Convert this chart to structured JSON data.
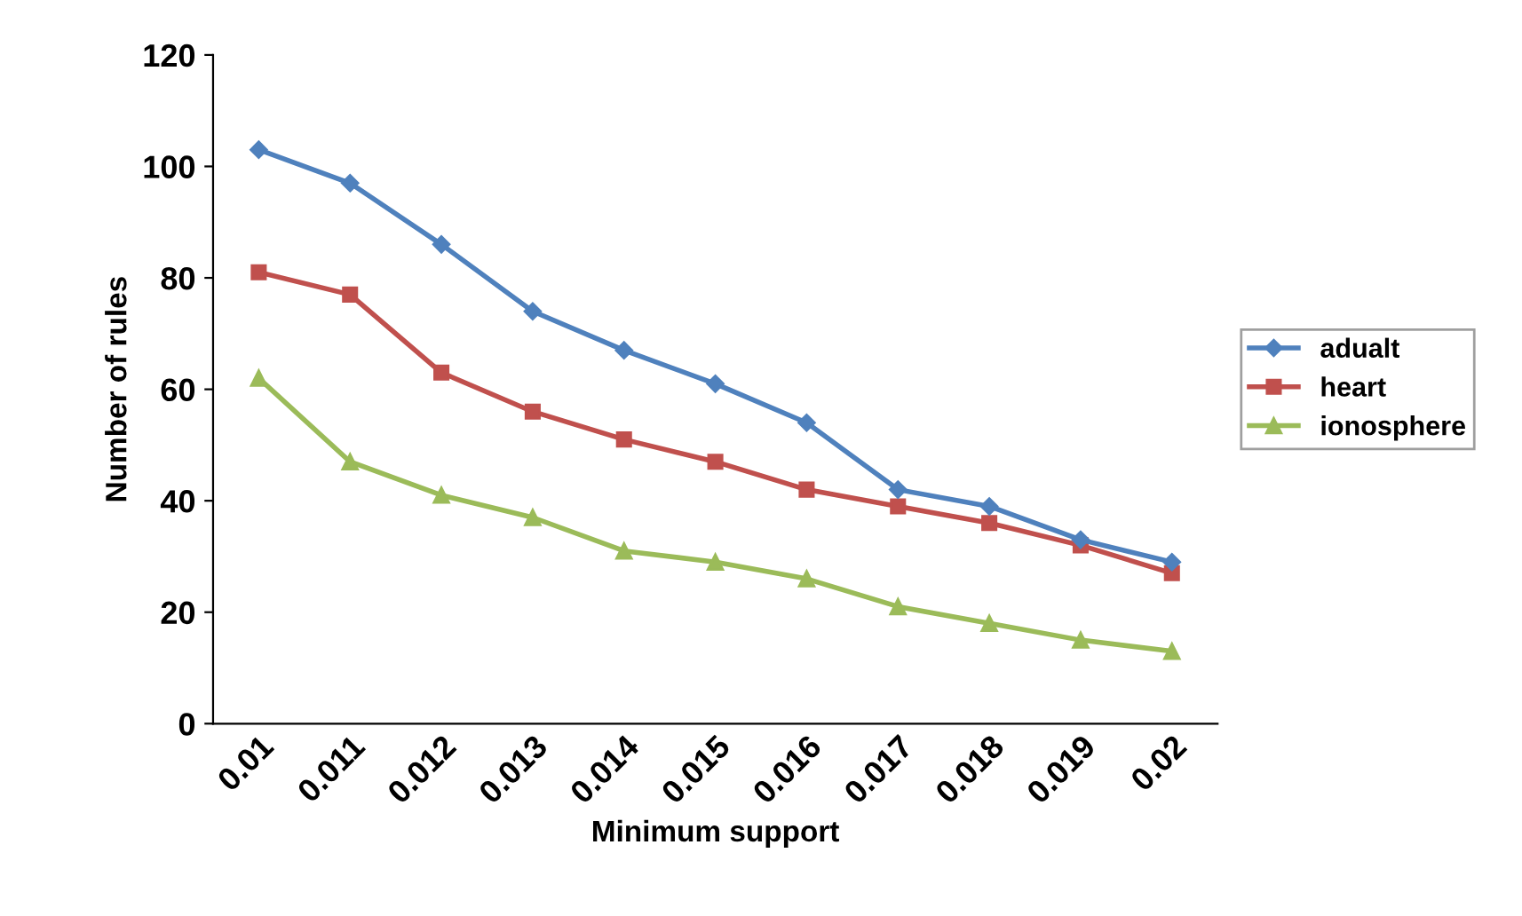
{
  "chart_data": {
    "type": "line",
    "xlabel": "Minimum support",
    "ylabel": "Number of rules",
    "categories": [
      "0.01",
      "0.011",
      "0.012",
      "0.013",
      "0.014",
      "0.015",
      "0.016",
      "0.017",
      "0.018",
      "0.019",
      "0.02"
    ],
    "series": [
      {
        "name": "adualt",
        "color": "#4f81bd",
        "marker": "diamond",
        "values": [
          103,
          97,
          86,
          74,
          67,
          61,
          54,
          42,
          39,
          33,
          29
        ]
      },
      {
        "name": "heart",
        "color": "#c0504d",
        "marker": "square",
        "values": [
          81,
          77,
          63,
          56,
          51,
          47,
          42,
          39,
          36,
          32,
          27
        ]
      },
      {
        "name": "ionosphere",
        "color": "#9bbb59",
        "marker": "triangle",
        "values": [
          62,
          47,
          41,
          37,
          31,
          29,
          26,
          21,
          18,
          15,
          13
        ]
      }
    ],
    "ylim": [
      0,
      120
    ],
    "yticks": [
      0,
      20,
      40,
      60,
      80,
      100,
      120
    ],
    "grid": false,
    "legend": "right"
  }
}
